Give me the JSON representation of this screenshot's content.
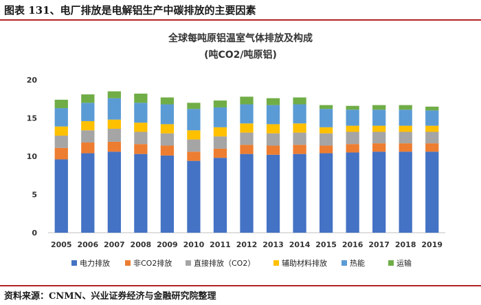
{
  "header": {
    "title": "图表 131、电厂排放是电解铝生产中碳排放的主要因素"
  },
  "footer": {
    "source": "资料来源：CNMN、兴业证券经济与金融研究院整理"
  },
  "colors": {
    "rule": "#b22222",
    "电力排放": "#4472c4",
    "非CO2排放": "#ed7d31",
    "直接排放（CO2）": "#a5a5a5",
    "辅助材料排放": "#ffc000",
    "热能": "#5b9bd5",
    "运输": "#70ad47"
  },
  "chart_data": {
    "type": "bar",
    "stacked": true,
    "title": "全球每吨原铝温室气体排放及构成",
    "subtitle": "(吨CO2/吨原铝)",
    "xlabel": "",
    "ylabel": "",
    "ylim": [
      0,
      20
    ],
    "yticks": [
      0,
      5,
      10,
      15,
      20
    ],
    "legend_position": "bottom",
    "categories": [
      "2005",
      "2006",
      "2007",
      "2008",
      "2009",
      "2010",
      "2011",
      "2012",
      "2013",
      "2014",
      "2015",
      "2016",
      "2017",
      "2018",
      "2019"
    ],
    "series": [
      {
        "name": "电力排放",
        "values": [
          9.6,
          10.4,
          10.6,
          10.3,
          10.1,
          9.4,
          9.8,
          10.3,
          10.2,
          10.3,
          10.4,
          10.5,
          10.6,
          10.6,
          10.6
        ]
      },
      {
        "name": "非CO2排放",
        "values": [
          1.5,
          1.4,
          1.3,
          1.3,
          1.3,
          1.2,
          1.2,
          1.2,
          1.2,
          1.2,
          1.0,
          1.1,
          1.1,
          1.1,
          1.1
        ]
      },
      {
        "name": "直接排放（CO2）",
        "values": [
          1.6,
          1.6,
          1.7,
          1.6,
          1.6,
          1.6,
          1.6,
          1.6,
          1.6,
          1.6,
          1.6,
          1.6,
          1.5,
          1.5,
          1.5
        ]
      },
      {
        "name": "辅助材料排放",
        "values": [
          1.2,
          1.2,
          1.2,
          1.2,
          1.2,
          1.2,
          1.2,
          1.2,
          1.2,
          1.2,
          0.8,
          0.8,
          0.8,
          0.8,
          0.8
        ]
      },
      {
        "name": "热能",
        "values": [
          2.4,
          2.4,
          2.8,
          2.6,
          2.6,
          2.8,
          2.6,
          2.5,
          2.5,
          2.5,
          2.4,
          2.1,
          2.1,
          2.1,
          2.0
        ]
      },
      {
        "name": "运输",
        "values": [
          1.1,
          1.1,
          0.9,
          1.2,
          0.9,
          0.8,
          0.9,
          1.0,
          0.9,
          0.9,
          0.5,
          0.5,
          0.6,
          0.6,
          0.5
        ]
      }
    ]
  }
}
